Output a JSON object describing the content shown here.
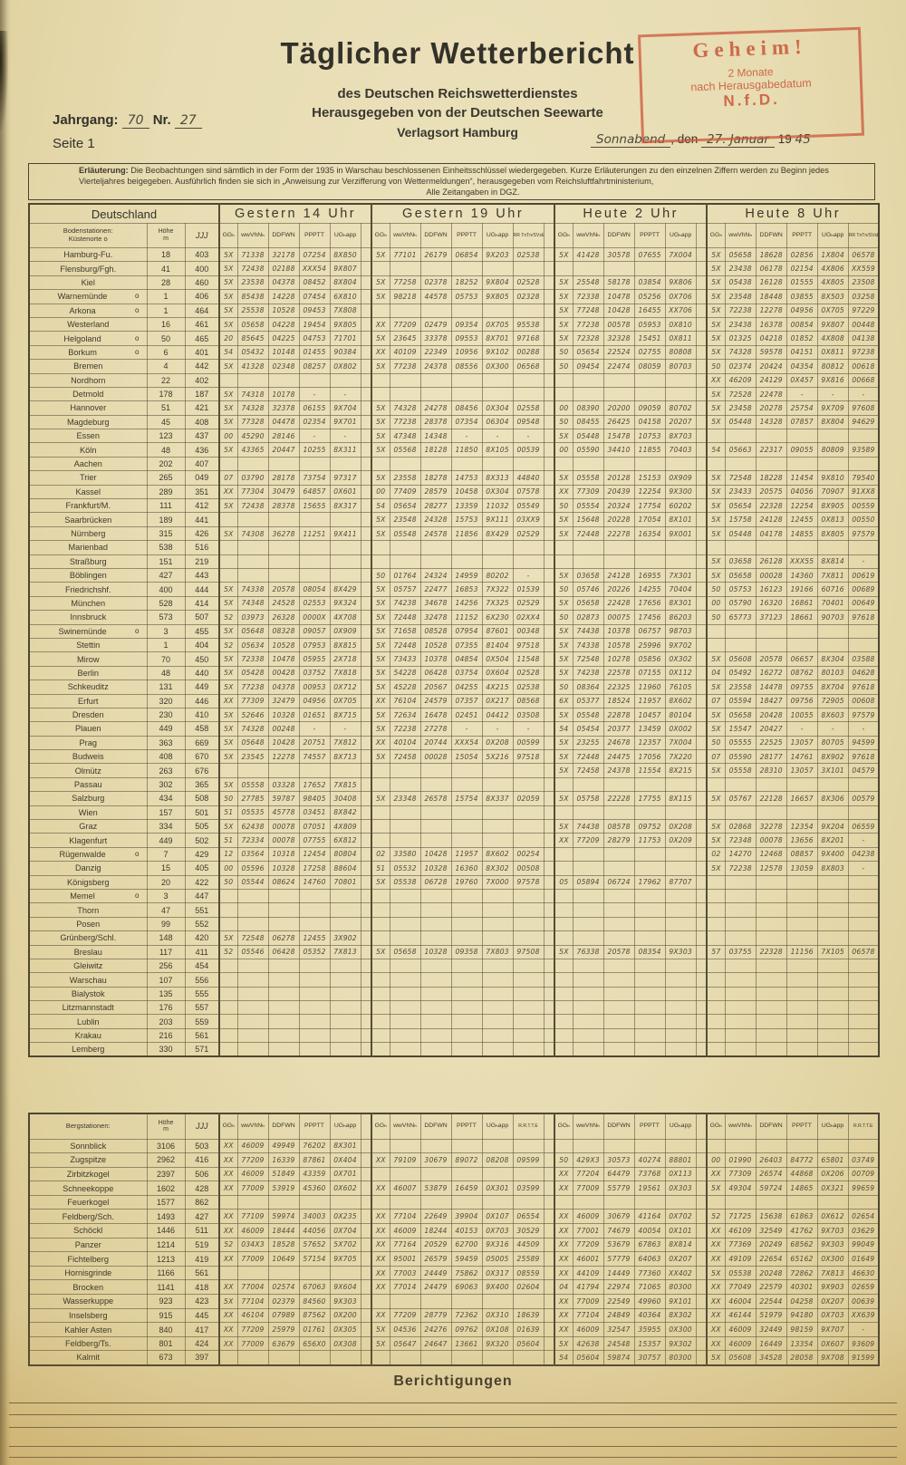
{
  "header": {
    "title": "Täglicher Wetterbericht",
    "subtitle1": "des Deutschen Reichswetterdienstes",
    "subtitle2": "Herausgegeben von der Deutschen Seewarte",
    "subtitle3": "Verlagsort Hamburg",
    "jahrgang_label": "Jahrgang:",
    "jahrgang_value": "70",
    "nr_label": "Nr.",
    "nr_value": "27",
    "seite": "Seite 1",
    "stamp": {
      "line1": "Geheim!",
      "line2": "2 Monate",
      "line3": "nach Herausgabedatum",
      "line4": "N.f.D."
    },
    "date": {
      "day_hw": "Sonnabend",
      "den": ", den",
      "date_hw": "27. Januar",
      "year_print": "19",
      "year_hw": "45"
    }
  },
  "erlaeuterung": {
    "label": "Erläuterung:",
    "text": "Die Beobachtungen sind sämtlich in der Form der 1935 in Warschau beschlossenen Einheitsschlüssel wiedergegeben.  Kurze Erläuterungen zu den einzelnen Ziffern werden zu Beginn jedes Vierteljahres beigegeben.  Ausführlich finden sie sich in „Anweisung zur Verzifferung von Wettermeldungen“, herausgegeben vom Reichsluftfahrtministerium,",
    "text2": "Alle Zeitangaben in DGZ."
  },
  "table": {
    "country": "Deutschland",
    "station_line1": "Bodenstationen:",
    "station_line2": "Küstenorte o",
    "hoehe_line1": "Höhe",
    "hoehe_line2": "m",
    "jjj_header": "JJJ",
    "groups": [
      "Gestern 14 Uhr",
      "Gestern 19 Uhr",
      "Heute 2 Uhr",
      "Heute 8 Uhr"
    ],
    "subcols": [
      "GGₕ",
      "wwVhNₕ",
      "DDFWN",
      "PPPTT",
      "UGₕapp"
    ],
    "rr": "RR TnTn/SVsE",
    "rows": [
      {
        "n": "Hamburg-Fu.",
        "h": "18",
        "j": "403",
        "g1": "5X 71338 32178 07254 8X850",
        "g2": "5X 77101 26179 06854 9X203 02538",
        "g3": "5X 41428 30578 07655 7X004",
        "g4": "5X 05658 18628 02856 1X804 06578"
      },
      {
        "n": "Flensburg/Fgh.",
        "h": "41",
        "j": "400",
        "g1": "5X 72438 02188 XXX54 9X807",
        "g4": "5X 23438 06178 02154 4X806 XX559"
      },
      {
        "n": "Kiel",
        "h": "28",
        "j": "460",
        "g1": "5X 23538 04378 08452 8X804",
        "g2": "5X 77258 02378 18252 9X804 02528",
        "g3": "5X 25548 58178 03854 9X806",
        "g4": "5X 05438 16128 01555 4X805 23508"
      },
      {
        "n": "Warnemünde",
        "m": "o",
        "h": "1",
        "j": "406",
        "g1": "5X 85438 14228 07454 6X810",
        "g2": "5X 98218 44578 05753 9X805 02328",
        "g3": "5X 72338 10478 05256 0X706",
        "g4": "5X 23548 18448 03855 8X503 03258"
      },
      {
        "n": "Arkona",
        "m": "o",
        "h": "1",
        "j": "464",
        "g1": "5X 25538 10528 09453 7X808",
        "g3": "5X 77248 10428 16455 XX706",
        "g4": "5X 72238 12278 04956 0X705 97229"
      },
      {
        "n": "Westerland",
        "h": "16",
        "j": "461",
        "g1": "5X 05658 04228 19454 9X805",
        "g2": "XX 77209 02479 09354 0X705 95538",
        "g3": "5X 77238 00578 05953 0X810",
        "g4": "5X 23438 16378 00854 9X807 00448"
      },
      {
        "n": "Helgoland",
        "m": "o",
        "h": "50",
        "j": "465",
        "g1": "20 85645 04225 04753 71701",
        "g2": "5X 23645 33378 09553 8X701 97168",
        "g3": "5X 72328 32328 15451 0X811",
        "g4": "5X 01325 04218 01852 4X808 04138"
      },
      {
        "n": "Borkum",
        "m": "o",
        "h": "6",
        "j": "401",
        "g1": "54 05432 10148 01455 90384",
        "g2": "XX 40109 22349 10956 9X102 00288",
        "g3": "50 05654 22524 02755 80808",
        "g4": "5X 74328 59578 04151 0X811 97238"
      },
      {
        "n": "Bremen",
        "h": "4",
        "j": "442",
        "g1": "5X 41328 02348 08257 0X802",
        "g2": "5X 77238 24378 08556 0X300 06568",
        "g3": "50 09454 22474 08059 80703",
        "g4": "50 02374 20424 04354 80812 00618"
      },
      {
        "n": "Nordhorn",
        "h": "22",
        "j": "402",
        "g4": "XX 46209 24129 0X457 9X816 00668"
      },
      {
        "n": "Detmold",
        "h": "178",
        "j": "187",
        "g1": "5X 74318 10178 - -",
        "g4": "5X 72528 22478 - - -"
      },
      {
        "n": "Hannover",
        "h": "51",
        "j": "421",
        "g1": "5X 74328 32378 06155 9X704",
        "g2": "5X 74328 24278 08456 0X304 02558",
        "g3": "00 08390 20200 09059 80702",
        "g4": "5X 23458 20278 25754 9X709 97608"
      },
      {
        "n": "Magdeburg",
        "h": "45",
        "j": "408",
        "g1": "5X 77328 04478 02354 9X701",
        "g2": "5X 77238 28378 07354 06304 09548",
        "g3": "50 08455 26425 04158 20207",
        "g4": "5X 05448 14328 07857 8X804 94629"
      },
      {
        "n": "Essen",
        "h": "123",
        "j": "437",
        "g1": "00 45290 28146 - -",
        "g2": "5X 47348 14348 - - -",
        "g3": "5X 05448 15478 10753 8X703"
      },
      {
        "n": "Köln",
        "h": "48",
        "j": "436",
        "g1": "5X 43365 20447 10255 8X311",
        "g2": "5X 05568 18128 11850 8X105 00539",
        "g3": "00 05590 34410 11855 70403",
        "g4": "54 05663 22317 09055 80809 93589"
      },
      {
        "n": "Aachen",
        "h": "202",
        "j": "407"
      },
      {
        "n": "Trier",
        "h": "265",
        "j": "049",
        "g1": "07 03790 28178 73754 97317",
        "g2": "5X 23558 18278 14753 8X313 44840",
        "g3": "5X 05558 20128 15153 0X909",
        "g4": "5X 72548 18228 11454 9X810 79540"
      },
      {
        "n": "Kassel",
        "h": "289",
        "j": "351",
        "g1": "XX 77304 30479 64857 0X601",
        "g2": "00 77409 28579 10458 0X304 07578",
        "g3": "XX 77309 20439 12254 9X300",
        "g4": "5X 23433 20575 04056 70907 91XX8"
      },
      {
        "n": "Frankfurt/M.",
        "h": "111",
        "j": "412",
        "g1": "5X 72438 28378 15655 8X317",
        "g2": "54 05654 28277 13359 11032 05549",
        "g3": "50 05554 20324 17754 60202",
        "g4": "5X 05654 22328 12254 8X905 00559"
      },
      {
        "n": "Saarbrücken",
        "h": "189",
        "j": "441",
        "g2": "5X 23548 24328 15753 9X111 03XX9",
        "g3": "5X 15648 20228 17054 8X101",
        "g4": "5X 15758 24128 12455 0X813 00550"
      },
      {
        "n": "Nürnberg",
        "h": "315",
        "j": "426",
        "g1": "5X 74308 36278 11251 9X411",
        "g2": "5X 05548 24578 11856 8X429 02529",
        "g3": "5X 72448 22278 16354 9X001",
        "g4": "5X 05448 04178 14855 8X805 97579"
      },
      {
        "n": "Marienbad",
        "h": "538",
        "j": "516"
      },
      {
        "n": "Straßburg",
        "h": "151",
        "j": "219",
        "g4": "5X 03658 26128 XXX55 8X814 -"
      },
      {
        "n": "Böblingen",
        "h": "427",
        "j": "443",
        "g2": "50 01764 24324 14959 80202 -",
        "g3": "5X 03658 24128 16955 7X301",
        "g4": "5X 05658 00028 14360 7X811 00619"
      },
      {
        "n": "Friedrichshf.",
        "h": "400",
        "j": "444",
        "g1": "5X 74338 20578 08054 8X429",
        "g2": "5X 05757 22477 16853 7X322 01539",
        "g3": "50 05746 20226 14255 70404",
        "g4": "50 05753 16123 19166 60716 00689"
      },
      {
        "n": "München",
        "h": "528",
        "j": "414",
        "g1": "5X 74348 24528 02553 9X324",
        "g2": "5X 74238 34678 14256 7X325 02529",
        "g3": "5X 05658 22428 17656 8X301",
        "g4": "00 05790 16320 16861 70401 00649"
      },
      {
        "n": "Innsbruck",
        "h": "573",
        "j": "507",
        "g1": "52 03973 26328 0000X 4X708",
        "g2": "5X 72448 32478 11152 6X230 02XX4",
        "g3": "50 02873 00075 17456 86203",
        "g4": "50 65773 37123 18661 90703 97618"
      },
      {
        "n": "Swinemünde",
        "m": "o",
        "h": "3",
        "j": "455",
        "g1": "5X 05648 08328 09057 0X909",
        "g2": "5X 71658 08528 07954 87601 00348",
        "g3": "5X 74438 10378 06757 98703"
      },
      {
        "n": "Stettin",
        "h": "1",
        "j": "404",
        "g1": "52 05634 10528 07953 8X815",
        "g2": "5X 72448 10528 07355 81404 97518",
        "g3": "5X 74338 10578 25996 9X702"
      },
      {
        "n": "Mirow",
        "h": "70",
        "j": "450",
        "g1": "5X 72338 10478 05955 2X718",
        "g2": "5X 73433 10378 04854 0X504 11548",
        "g3": "5X 72548 10278 05856 0X302",
        "g4": "5X 05608 20578 06657 8X304 03588"
      },
      {
        "n": "Berlin",
        "h": "48",
        "j": "440",
        "g1": "5X 05428 00428 03752 7X818",
        "g2": "5X 54228 06428 03754 0X604 02528",
        "g3": "5X 74238 22578 07155 0X112",
        "g4": "04 05492 16272 08762 80103 04628"
      },
      {
        "n": "Schkeuditz",
        "h": "131",
        "j": "449",
        "g1": "5X 77238 04378 00953 0X712",
        "g2": "5X 45228 20567 04255 4X215 02538",
        "g3": "50 08364 22325 11960 76105",
        "g4": "5X 23558 14478 09755 8X704 97618"
      },
      {
        "n": "Erfurt",
        "h": "320",
        "j": "446",
        "g1": "XX 77309 32479 04956 0X705",
        "g2": "XX 76104 24579 07357 0X217 08568",
        "g3": "6X 05377 18524 11957 8X602",
        "g4": "07 05594 18427 09756 72905 00608"
      },
      {
        "n": "Dresden",
        "h": "230",
        "j": "410",
        "g1": "5X 52646 10328 01651 8X715",
        "g2": "5X 72634 16478 02451 04412 03508",
        "g3": "5X 05548 22878 10457 80104",
        "g4": "5X 05658 20428 10055 8X603 97579"
      },
      {
        "n": "Plauen",
        "h": "449",
        "j": "458",
        "g1": "5X 74328 00248 - -",
        "g2": "5X 72238 27278 - - -",
        "g3": "54 05454 20377 13459 0X002",
        "g4": "5X 15547 20427 - - -"
      },
      {
        "n": "Prag",
        "h": "363",
        "j": "669",
        "g1": "5X 05648 10428 20751 7X812",
        "g2": "XX 40104 20744 XXX54 0X208 00599",
        "g3": "5X 23255 24678 12357 7X004",
        "g4": "50 05555 22525 13057 80705 94599"
      },
      {
        "n": "Budweis",
        "h": "408",
        "j": "670",
        "g1": "5X 23545 12278 74557 8X713",
        "g2": "5X 72458 00028 15054 5X216 97518",
        "g3": "5X 72448 24475 17056 7X220",
        "g4": "07 05590 28177 14761 8X902 97618"
      },
      {
        "n": "Olmütz",
        "h": "263",
        "j": "676",
        "g3": "5X 72458 24378 11554 8X215",
        "g4": "5X 05558 28310 13057 3X101 04579"
      },
      {
        "n": "Passau",
        "h": "302",
        "j": "365",
        "g1": "5X 05558 03328 17652 7X815"
      },
      {
        "n": "Salzburg",
        "h": "434",
        "j": "508",
        "g1": "50 27785 59787 98405 30408",
        "g2": "5X 23348 26578 15754 8X337 02059",
        "g3": "5X 05758 22228 17755 8X115",
        "g4": "5X 05767 22128 16657 8X306 00579"
      },
      {
        "n": "Wien",
        "h": "157",
        "j": "501",
        "g1": "51 05535 45778 03451 8X842"
      },
      {
        "n": "Graz",
        "h": "334",
        "j": "505",
        "g1": "5X 62438 00078 07051 4X809",
        "g3": "5X 74438 08578 09752 0X208",
        "g4": "5X 02868 32278 12354 9X204 06559"
      },
      {
        "n": "Klagenfurt",
        "h": "449",
        "j": "502",
        "g1": "51 72334 00078 07755 6X812",
        "g3": "XX 77209 28279 11753 0X209",
        "g4": "5X 72348 00078 13656 8X201 -"
      },
      {
        "n": "Rügenwalde",
        "m": "o",
        "h": "7",
        "j": "429",
        "g1": "12 03564 10318 12454 80804",
        "g2": "02 33580 10428 11957 8X602 00254",
        "g4": "02 14270 12468 08857 9X400 04238"
      },
      {
        "n": "Danzig",
        "h": "15",
        "j": "405",
        "g1": "00 05596 10328 17258 88604",
        "g2": "51 05532 10328 16360 8X302 00508",
        "g4": "5X 72238 12578 13059 8X803 -"
      },
      {
        "n": "Königsberg",
        "h": "20",
        "j": "422",
        "g1": "50 05544 08624 14760 70801",
        "g2": "5X 05538 06728 19760 7X000 97578",
        "g3": "05 05894 06724 17962 87707"
      },
      {
        "n": "Memel",
        "m": "o",
        "h": "3",
        "j": "447"
      },
      {
        "n": "Thorn",
        "h": "47",
        "j": "551"
      },
      {
        "n": "Posen",
        "h": "99",
        "j": "552"
      },
      {
        "n": "Grünberg/Schl.",
        "h": "148",
        "j": "420",
        "g1": "5X 72548 06278 12455 3X902"
      },
      {
        "n": "Breslau",
        "h": "117",
        "j": "411",
        "g1": "52 05546 06428 05352 7X813",
        "g2": "5X 05658 10328 09358 7X803 97508",
        "g3": "5X 76338 20578 08354 9X303",
        "g4": "57 03755 22328 11156 7X105 06578"
      },
      {
        "n": "Gleiwitz",
        "h": "256",
        "j": "454"
      },
      {
        "n": "Warschau",
        "h": "107",
        "j": "556"
      },
      {
        "n": "Bialystok",
        "h": "135",
        "j": "555"
      },
      {
        "n": "Litzmannstadt",
        "h": "176",
        "j": "557"
      },
      {
        "n": "Lublin",
        "h": "203",
        "j": "559"
      },
      {
        "n": "Krakau",
        "h": "216",
        "j": "561"
      },
      {
        "n": "Lemberg",
        "h": "330",
        "j": "571"
      }
    ]
  },
  "berg": {
    "station_header": "Bergstationen:",
    "rr": "R.R.T.T.E",
    "rows": [
      {
        "n": "Sonnblick",
        "h": "3106",
        "j": "503",
        "g1": "XX 46009 49949 76202 8X301"
      },
      {
        "n": "Zugspitze",
        "h": "2962",
        "j": "416",
        "g1": "XX 77209 16339 87861 0X404",
        "g2": "XX 79109 30679 89072 08208 09599",
        "g3": "50 429X3 30573 40274 88801",
        "g4": "00 01990 26403 84772 65801 03749"
      },
      {
        "n": "Zirbitzkogel",
        "h": "2397",
        "j": "506",
        "g1": "XX 46009 51849 43359 0X701",
        "g3": "XX 77204 64479 73768 0X113",
        "g4": "XX 77309 26574 44868 0X206 00709"
      },
      {
        "n": "Schneekoppe",
        "h": "1602",
        "j": "428",
        "g1": "XX 77009 53919 45360 0X602",
        "g2": "XX 46007 53879 16459 0X301 03599",
        "g3": "XX 77009 55779 19561 0X303",
        "g4": "5X 49304 59724 14865 0X321 99659"
      },
      {
        "n": "Feuerkogel",
        "h": "1577",
        "j": "862"
      },
      {
        "n": "Feldberg/Sch.",
        "h": "1493",
        "j": "427",
        "g1": "XX 77109 59974 34003 0X235",
        "g2": "XX 77104 22649 39904 0X107 06554",
        "g3": "XX 46009 30679 41164 0X702",
        "g4": "52 71725 15638 61863 0X612 02654"
      },
      {
        "n": "Schöckl",
        "h": "1446",
        "j": "511",
        "g1": "XX 46009 18444 44056 0X704",
        "g2": "XX 46009 18244 40153 0X703 30529",
        "g3": "XX 77001 74679 40054 0X101",
        "g4": "XX 46109 32549 41762 9X703 03629"
      },
      {
        "n": "Panzer",
        "h": "1214",
        "j": "519",
        "g1": "52 034X3 18528 57652 5X702",
        "g2": "XX 77164 20529 62700 9X316 44509",
        "g3": "XX 77209 53679 67863 8X814",
        "g4": "XX 77369 20249 68562 9X303 99049"
      },
      {
        "n": "Fichtelberg",
        "h": "1213",
        "j": "419",
        "g1": "XX 77009 10649 57154 9X705",
        "g2": "XX 95001 26579 59459 05005 25589",
        "g3": "XX 46001 57779 64063 0X207",
        "g4": "XX 49109 22654 65162 0X300 01649"
      },
      {
        "n": "Hornisgrinde",
        "h": "1166",
        "j": "561",
        "g2": "XX 77003 24449 75862 0X317 08559",
        "g3": "XX 44109 14449 77360 XX402",
        "g4": "5X 05538 20248 72862 7X813 46630"
      },
      {
        "n": "Brocken",
        "h": "1141",
        "j": "418",
        "g1": "XX 77004 02574 67063 9X604",
        "g2": "XX 77014 24479 69063 9X400 02604",
        "g3": "04 41794 22974 71065 80300",
        "g4": "XX 77049 22579 40301 9X903 02659"
      },
      {
        "n": "Wasserkuppe",
        "h": "923",
        "j": "423",
        "g1": "5X 77104 02379 84560 9X303",
        "g3": "XX 77009 22549 49960 9X101",
        "g4": "XX 46004 22544 04258 0X207 00639"
      },
      {
        "n": "Inselsberg",
        "h": "915",
        "j": "445",
        "g1": "XX 46104 07989 87562 0X200",
        "g2": "XX 77209 28779 72362 0X310 18639",
        "g3": "XX 77104 24849 40364 8X302",
        "g4": "XX 46144 51979 94180 0X703 XX639"
      },
      {
        "n": "Kahler Asten",
        "h": "840",
        "j": "417",
        "g1": "XX 77209 25979 01761 0X305",
        "g2": "5X 04536 24276 09762 0X108 01639",
        "g3": "XX 46009 32547 35955 0X300",
        "g4": "XX 46009 32449 98159 9X707 -"
      },
      {
        "n": "Feldberg/Ts.",
        "h": "801",
        "j": "424",
        "g1": "XX 77009 63679 656X0 0X308",
        "g2": "5X 05647 24647 13661 9X320 05604",
        "g3": "5X 42638 24548 15357 9X302",
        "g4": "XX 46009 16449 13354 0X607 93609"
      },
      {
        "n": "Kalmit",
        "h": "673",
        "j": "397",
        "g3": "54 05604 59874 30757 80300",
        "g4": "5X 05608 34528 28058 9X708 91599"
      }
    ]
  },
  "footer": {
    "title": "Berichtigungen"
  }
}
